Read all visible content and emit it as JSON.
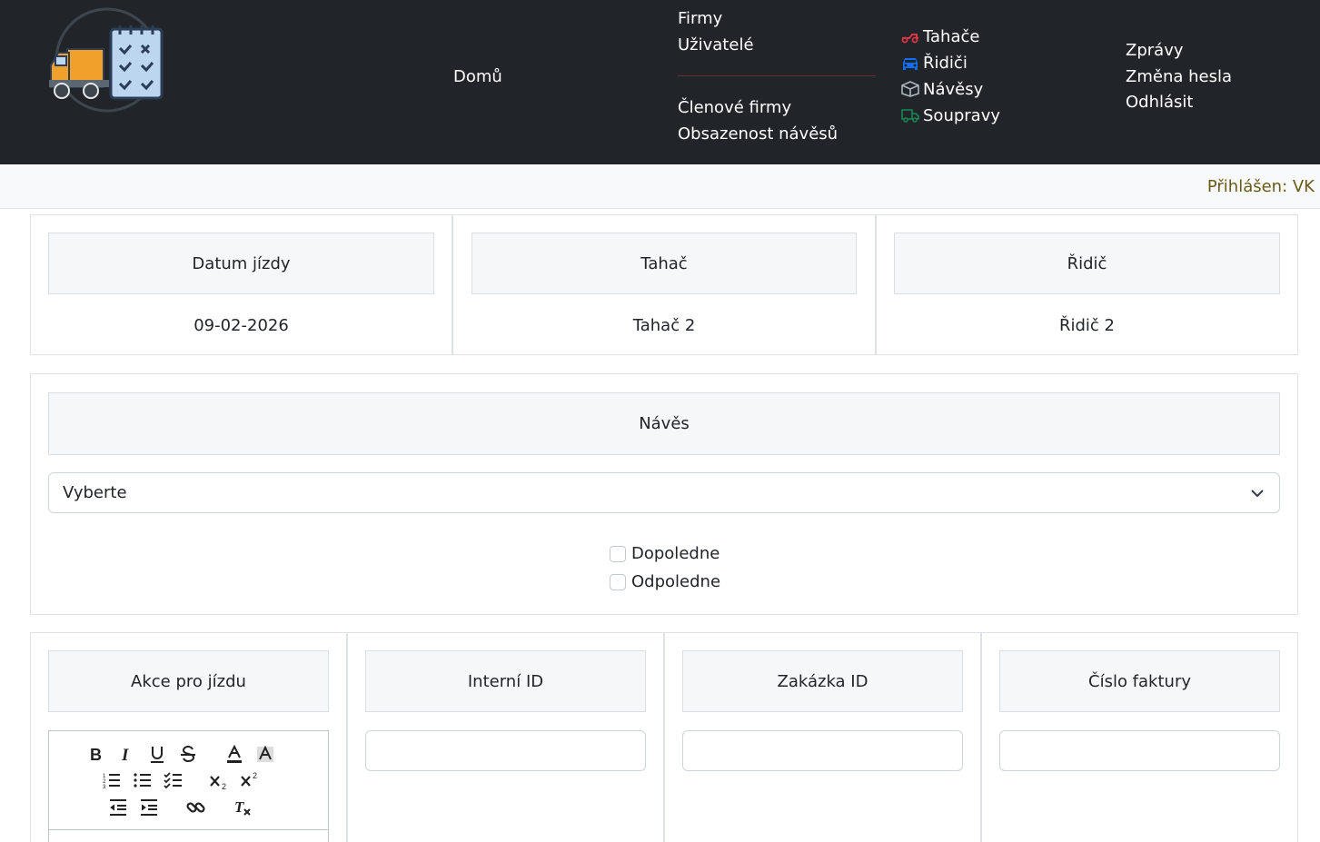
{
  "nav": {
    "home": "Domů",
    "firms": "Firmy",
    "users": "Uživatelé",
    "member_firms": "Členové firmy",
    "trailer_occupancy": "Obsazenost návěsů",
    "tractors": "Tahače",
    "drivers": "Řidiči",
    "trailers": "Návěsy",
    "sets": "Soupravy",
    "messages": "Zprávy",
    "change_password": "Změna hesla",
    "logout": "Odhlásit"
  },
  "status": {
    "logged_in": "Přihlášen: VK"
  },
  "ride": {
    "date_label": "Datum jízdy",
    "date_value": "09-02-2026",
    "tractor_label": "Tahač",
    "tractor_value": "Tahač 2",
    "driver_label": "Řidič",
    "driver_value": "Řidič 2"
  },
  "trailer": {
    "label": "Návěs",
    "select_value": "Vyberte",
    "morning": "Dopoledne",
    "afternoon": "Odpoledne"
  },
  "details": {
    "actions_label": "Akce pro jízdu",
    "internal_id_label": "Interní ID",
    "order_id_label": "Zakázka ID",
    "invoice_label": "Číslo faktury"
  },
  "colors": {
    "navbar_bg": "#212529",
    "tractor_icon": "#dc3545",
    "driver_icon": "#0d6efd",
    "trailer_icon": "#adb5bd",
    "set_icon": "#198754",
    "logged_text": "#6b5a16"
  },
  "icons": [
    "truck-logo",
    "tractor-icon",
    "car-icon",
    "box-icon",
    "truck-icon",
    "chevron-down-icon"
  ]
}
